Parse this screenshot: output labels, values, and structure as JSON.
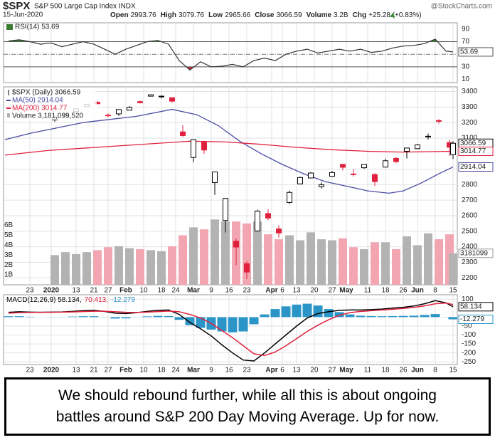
{
  "header": {
    "symbol": "$SPX",
    "name": "S&P 500 Large Cap Index INDX",
    "source": "@StockCharts.com",
    "date": "15-Jun-2020",
    "quote": [
      {
        "label": "Open",
        "value": "2993.76"
      },
      {
        "label": "High",
        "value": "3079.76"
      },
      {
        "label": "Low",
        "value": "2965.66"
      },
      {
        "label": "Close",
        "value": "3066.59"
      },
      {
        "label": "Volume",
        "value": "3.2B"
      },
      {
        "label": "Chg",
        "value": "+25.28 (+0.83%)"
      }
    ]
  },
  "chart_data": [
    {
      "type": "line",
      "legend": "RSI(14) 53.69",
      "color": "#333333",
      "overbought_color": "#3d7a35",
      "oversold_color": "#b5333a",
      "overbought": 70,
      "oversold": 30,
      "midline": 50,
      "xlim": [
        -2.4,
        125.2
      ],
      "ylim": [
        5,
        100
      ],
      "yticks": [
        10,
        30,
        70,
        90
      ],
      "x": [
        -1,
        2,
        5,
        8,
        11,
        14,
        17,
        20,
        23,
        26,
        29,
        32,
        35,
        38,
        41,
        44,
        47,
        50,
        53,
        56,
        59,
        62,
        65,
        68,
        71,
        74,
        77,
        80,
        83,
        86,
        89,
        92,
        95,
        98,
        101,
        104,
        107,
        110,
        113,
        116,
        119,
        122,
        124
      ],
      "values": [
        71,
        73,
        70,
        66,
        68,
        62,
        66,
        70,
        66,
        58,
        50,
        58,
        64,
        70,
        72,
        66,
        40,
        25,
        38,
        30,
        31,
        34,
        30,
        40,
        44,
        40,
        50,
        55,
        58,
        52,
        55,
        58,
        55,
        58,
        53,
        55,
        60,
        63,
        64,
        67,
        74,
        55,
        53.69
      ],
      "value_label": "53.69"
    },
    {
      "type": "candlestick",
      "legend": "$SPX (Daily) 3066.59",
      "up_color": "#000000",
      "down_color": "#e0213d",
      "value_label": "3066.59",
      "grid": true,
      "xlim": [
        -2.4,
        125.2
      ],
      "ylim": [
        2155,
        3430
      ],
      "yticks": [
        2200,
        2300,
        2400,
        2500,
        2600,
        2700,
        2800,
        2900,
        3100,
        3200,
        3300,
        3400
      ],
      "xticks": [
        {
          "value": 5,
          "label": "23"
        },
        {
          "value": 11,
          "label": "2020"
        },
        {
          "value": 18,
          "label": "13"
        },
        {
          "value": 23,
          "label": "21"
        },
        {
          "value": 27,
          "label": "27"
        },
        {
          "value": 32,
          "label": "Feb"
        },
        {
          "value": 37,
          "label": "10"
        },
        {
          "value": 42,
          "label": "18"
        },
        {
          "value": 46,
          "label": "24"
        },
        {
          "value": 51,
          "label": "Mar"
        },
        {
          "value": 56,
          "label": "9"
        },
        {
          "value": 61,
          "label": "16"
        },
        {
          "value": 66,
          "label": "23"
        },
        {
          "value": 73,
          "label": "Apr"
        },
        {
          "value": 76,
          "label": "6"
        },
        {
          "value": 80,
          "label": "13"
        },
        {
          "value": 85,
          "label": "20"
        },
        {
          "value": 90,
          "label": "27"
        },
        {
          "value": 94,
          "label": "May"
        },
        {
          "value": 100,
          "label": "11"
        },
        {
          "value": 105,
          "label": "18"
        },
        {
          "value": 110,
          "label": "26"
        },
        {
          "value": 114,
          "label": "Jun"
        },
        {
          "value": 119,
          "label": "8"
        },
        {
          "value": 124,
          "label": "15"
        }
      ],
      "x": [
        12,
        15,
        18,
        21,
        24,
        27,
        30,
        33,
        36,
        39,
        42,
        45,
        48,
        51,
        54,
        57,
        60,
        63,
        66,
        69,
        72,
        75,
        78,
        81,
        84,
        87,
        90,
        93,
        96,
        99,
        102,
        105,
        108,
        111,
        114,
        117,
        120,
        123,
        124
      ],
      "open": [
        3218,
        3238,
        3271,
        3302,
        3331,
        3248,
        3256,
        3280,
        3335,
        3370,
        3369,
        3360,
        3140,
        2975,
        3075,
        2813,
        2569,
        2436,
        2291,
        2502,
        2614,
        2515,
        2685,
        2805,
        2843,
        2787,
        2854,
        2931,
        2869,
        2909,
        2865,
        2913,
        2969,
        3015,
        3032,
        3111,
        3213,
        3071,
        2993.76
      ],
      "high": [
        3246,
        3267,
        3289,
        3317,
        3338,
        3259,
        3285,
        3306,
        3342,
        3381,
        3375,
        3360,
        3183,
        3090,
        3083,
        2883,
        2711,
        2453,
        2307,
        2638,
        2641,
        2538,
        2761,
        2851,
        2880,
        2815,
        2888,
        2931,
        2898,
        2932,
        2874,
        2968,
        2978,
        3036,
        3062,
        3129,
        3222,
        3088,
        3079.76
      ],
      "low": [
        3206,
        3236,
        3267,
        3302,
        3321,
        3234,
        3243,
        3280,
        3322,
        3369,
        3356,
        3328,
        3108,
        2945,
        2999,
        2734,
        2492,
        2281,
        2192,
        2500,
        2571,
        2459,
        2676,
        2805,
        2843,
        2775,
        2852,
        2892,
        2852,
        2902,
        2793,
        2913,
        2938,
        2969,
        3031,
        3091,
        3193,
        2984,
        2965.66
      ],
      "close": [
        3235,
        3253,
        3288,
        3317,
        3321,
        3244,
        3284,
        3298,
        3328,
        3379,
        3370,
        3338,
        3116,
        3090,
        3023,
        2882,
        2711,
        2398,
        2237,
        2630,
        2585,
        2489,
        2750,
        2846,
        2875,
        2799,
        2878,
        2912,
        2868,
        2930,
        2820,
        2954,
        2949,
        3036,
        3056,
        3112,
        3208,
        3041,
        3066.59
      ],
      "series": [
        {
          "name": "MA(50) 2914.04",
          "color": "#4b4ba6",
          "value_label": "2914.04",
          "x": [
            -2,
            5,
            20,
            35,
            45,
            52,
            58,
            64,
            70,
            76,
            82,
            88,
            94,
            100,
            106,
            110,
            115,
            120,
            124
          ],
          "values": [
            3090,
            3130,
            3200,
            3240,
            3285,
            3250,
            3180,
            3080,
            3000,
            2930,
            2870,
            2820,
            2790,
            2760,
            2745,
            2760,
            2810,
            2870,
            2914.04
          ]
        },
        {
          "name": "MA(200) 3014.77",
          "color": "#e0213d",
          "value_label": "3014.77",
          "x": [
            -2,
            10,
            30,
            50,
            60,
            70,
            80,
            90,
            100,
            110,
            124
          ],
          "values": [
            2990,
            3020,
            3050,
            3080,
            3075,
            3060,
            3040,
            3025,
            3015,
            3010,
            3014.77
          ]
        }
      ],
      "volume": {
        "name": "Volume 3,181,099,520",
        "value_label": "3181099",
        "up_color": "#b3b3b3",
        "down_color": "#f2a6b1",
        "ylim": [
          0,
          20
        ],
        "yticks": [
          {
            "value": 1,
            "label": "1B"
          },
          {
            "value": 2,
            "label": "2B"
          },
          {
            "value": 3,
            "label": "3B"
          },
          {
            "value": 4,
            "label": "4B"
          },
          {
            "value": 5,
            "label": "5B"
          },
          {
            "value": 6,
            "label": "6B"
          }
        ],
        "values": [
          3.0,
          3.3,
          3.1,
          3.3,
          3.5,
          3.8,
          3.9,
          3.7,
          3.6,
          3.5,
          3.4,
          3.9,
          5.0,
          5.8,
          5.6,
          6.6,
          6.4,
          6.4,
          6.2,
          6.4,
          5.1,
          4.6,
          5.0,
          4.5,
          5.3,
          4.6,
          4.5,
          4.7,
          3.8,
          3.6,
          4.3,
          4.3,
          3.6,
          4.9,
          4.0,
          5.2,
          4.6,
          5.1,
          3.18
        ]
      }
    },
    {
      "type": "line",
      "grid": true,
      "xlim": [
        -2.4,
        125.2
      ],
      "ylim": [
        -265,
        125
      ],
      "yticks": [
        100,
        -50,
        -100,
        -150,
        -200,
        -250
      ],
      "xticks": [
        {
          "value": 5,
          "label": "23"
        },
        {
          "value": 11,
          "label": "2020"
        },
        {
          "value": 18,
          "label": "13"
        },
        {
          "value": 23,
          "label": "21"
        },
        {
          "value": 27,
          "label": "27"
        },
        {
          "value": 32,
          "label": "Feb"
        },
        {
          "value": 37,
          "label": "10"
        },
        {
          "value": 42,
          "label": "18"
        },
        {
          "value": 46,
          "label": "24"
        },
        {
          "value": 51,
          "label": "Mar"
        },
        {
          "value": 56,
          "label": "9"
        },
        {
          "value": 61,
          "label": "16"
        },
        {
          "value": 66,
          "label": "23"
        },
        {
          "value": 73,
          "label": "Apr"
        },
        {
          "value": 76,
          "label": "6"
        },
        {
          "value": 80,
          "label": "13"
        },
        {
          "value": 85,
          "label": "20"
        },
        {
          "value": 90,
          "label": "27"
        },
        {
          "value": 94,
          "label": "May"
        },
        {
          "value": 100,
          "label": "11"
        },
        {
          "value": 105,
          "label": "18"
        },
        {
          "value": 110,
          "label": "26"
        },
        {
          "value": 114,
          "label": "Jun"
        },
        {
          "value": 119,
          "label": "8"
        },
        {
          "value": 124,
          "label": "15"
        }
      ],
      "x": [
        -1,
        2,
        5,
        8,
        11,
        14,
        17,
        20,
        23,
        26,
        29,
        32,
        35,
        38,
        41,
        44,
        47,
        50,
        53,
        56,
        59,
        62,
        65,
        68,
        71,
        74,
        77,
        80,
        83,
        86,
        89,
        92,
        95,
        98,
        101,
        104,
        107,
        110,
        113,
        116,
        119,
        122,
        124
      ],
      "series": [
        {
          "name": "MACD(12,26,9) 58.134,",
          "color": "#000000",
          "value_label": "58.134",
          "values": [
            27,
            30,
            28,
            27,
            28,
            29,
            32,
            36,
            38,
            32,
            22,
            20,
            25,
            32,
            38,
            40,
            15,
            -30,
            -65,
            -105,
            -155,
            -200,
            -240,
            -245,
            -200,
            -150,
            -100,
            -50,
            -5,
            20,
            30,
            38,
            40,
            40,
            42,
            45,
            50,
            55,
            62,
            75,
            92,
            80,
            58.134
          ]
        },
        {
          "name": "70.413,",
          "color": "#e0213d",
          "values": [
            22,
            25,
            26,
            27,
            27,
            28,
            29,
            31,
            33,
            33,
            30,
            27,
            26,
            28,
            31,
            34,
            30,
            15,
            -5,
            -35,
            -75,
            -115,
            -160,
            -205,
            -215,
            -195,
            -160,
            -120,
            -80,
            -45,
            -15,
            10,
            25,
            32,
            36,
            40,
            44,
            48,
            54,
            63,
            75,
            79,
            70.413
          ]
        },
        {
          "name": "-12.279",
          "type": "bar",
          "color": "#2b95c8",
          "value_label": "-12.279",
          "values": [
            5,
            5,
            2,
            0,
            1,
            1,
            3,
            5,
            5,
            -1,
            -8,
            -7,
            -1,
            4,
            7,
            6,
            -15,
            -45,
            -60,
            -70,
            -80,
            -85,
            -80,
            -40,
            15,
            45,
            60,
            70,
            75,
            65,
            45,
            28,
            15,
            8,
            6,
            5,
            6,
            7,
            8,
            12,
            17,
            1,
            -12.279
          ]
        }
      ]
    }
  ],
  "caption": [
    "We should rebound further, while all this is about ongoing",
    "battles around S&P 200 Day Moving Average. Up for now."
  ]
}
